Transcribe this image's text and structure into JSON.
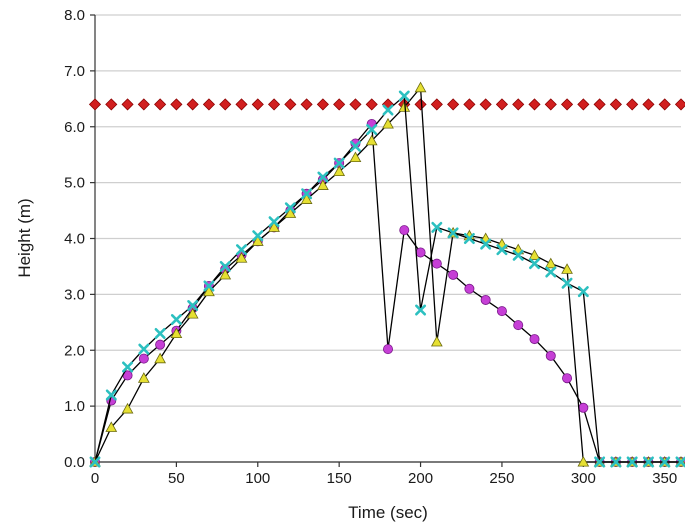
{
  "chart_data": {
    "type": "line",
    "title": "",
    "xlabel": "Time (sec)",
    "ylabel": "Height (m)",
    "xlim": [
      0,
      360
    ],
    "ylim": [
      0,
      8
    ],
    "xticks": [
      0,
      50,
      100,
      150,
      200,
      250,
      300,
      350
    ],
    "yticks": [
      0,
      1,
      2,
      3,
      4,
      5,
      6,
      7,
      8
    ],
    "xtick_labels": [
      "0",
      "50",
      "100",
      "150",
      "200",
      "250",
      "300",
      "350"
    ],
    "ytick_labels": [
      "0.0",
      "1.0",
      "2.0",
      "3.0",
      "4.0",
      "5.0",
      "6.0",
      "7.0",
      "8.0"
    ],
    "grid": "horizontal",
    "legend": "none",
    "series": [
      {
        "marker": "diamond",
        "fill": "#d11f1f",
        "stroke": "#8a0000",
        "line": false,
        "x": [
          0,
          10,
          20,
          30,
          40,
          50,
          60,
          70,
          80,
          90,
          100,
          110,
          120,
          130,
          140,
          150,
          160,
          170,
          180,
          190,
          200,
          210,
          220,
          230,
          240,
          250,
          260,
          270,
          280,
          290,
          300,
          310,
          320,
          330,
          340,
          350,
          360
        ],
        "y": [
          6.4,
          6.4,
          6.4,
          6.4,
          6.4,
          6.4,
          6.4,
          6.4,
          6.4,
          6.4,
          6.4,
          6.4,
          6.4,
          6.4,
          6.4,
          6.4,
          6.4,
          6.4,
          6.4,
          6.4,
          6.4,
          6.4,
          6.4,
          6.4,
          6.4,
          6.4,
          6.4,
          6.4,
          6.4,
          6.4,
          6.4,
          6.4,
          6.4,
          6.4,
          6.4,
          6.4,
          6.4
        ]
      },
      {
        "marker": "circle",
        "fill": "#c63fd6",
        "stroke": "#7a1a8a",
        "line": true,
        "x": [
          0,
          10,
          20,
          30,
          40,
          50,
          60,
          70,
          80,
          90,
          100,
          110,
          120,
          130,
          140,
          150,
          160,
          170,
          180,
          190,
          200,
          210,
          220,
          230,
          240,
          250,
          260,
          270,
          280,
          290,
          300,
          310,
          320,
          330,
          340,
          350,
          360
        ],
        "y": [
          0,
          1.1,
          1.55,
          1.85,
          2.1,
          2.35,
          2.75,
          3.15,
          3.45,
          3.7,
          3.95,
          4.2,
          4.5,
          4.8,
          5.05,
          5.35,
          5.7,
          6.05,
          2.02,
          4.15,
          3.75,
          3.55,
          3.35,
          3.1,
          2.9,
          2.7,
          2.45,
          2.2,
          1.9,
          1.5,
          0.97,
          0,
          0,
          0,
          0,
          0,
          0
        ]
      },
      {
        "marker": "triangle",
        "fill": "#e6e032",
        "stroke": "#6b6a10",
        "line": true,
        "x": [
          0,
          10,
          20,
          30,
          40,
          50,
          60,
          70,
          80,
          90,
          100,
          110,
          120,
          130,
          140,
          150,
          160,
          170,
          180,
          190,
          200,
          210,
          220,
          230,
          240,
          250,
          260,
          270,
          280,
          290,
          300,
          310,
          320,
          330,
          340,
          350,
          360
        ],
        "y": [
          0,
          0.62,
          0.95,
          1.5,
          1.85,
          2.3,
          2.65,
          3.05,
          3.35,
          3.65,
          3.95,
          4.2,
          4.45,
          4.7,
          4.95,
          5.2,
          5.45,
          5.75,
          6.05,
          6.35,
          6.7,
          2.15,
          4.1,
          4.05,
          4.0,
          3.9,
          3.8,
          3.7,
          3.55,
          3.45,
          0,
          0,
          0,
          0,
          0,
          0,
          0
        ]
      },
      {
        "marker": "x",
        "fill": "#2cc0c0",
        "stroke": "#1a8a8a",
        "line": true,
        "x": [
          0,
          10,
          20,
          30,
          40,
          50,
          60,
          70,
          80,
          90,
          100,
          110,
          120,
          130,
          140,
          150,
          160,
          170,
          180,
          190,
          200,
          210,
          220,
          230,
          240,
          250,
          260,
          270,
          280,
          290,
          300,
          310,
          320,
          330,
          340,
          350,
          360
        ],
        "y": [
          0,
          1.2,
          1.7,
          2.02,
          2.3,
          2.55,
          2.8,
          3.15,
          3.5,
          3.8,
          4.05,
          4.3,
          4.55,
          4.8,
          5.1,
          5.35,
          5.65,
          5.95,
          6.3,
          6.55,
          2.72,
          4.2,
          4.1,
          4.0,
          3.9,
          3.8,
          3.7,
          3.55,
          3.4,
          3.2,
          3.05,
          0,
          0,
          0,
          0,
          0,
          0
        ]
      }
    ]
  }
}
